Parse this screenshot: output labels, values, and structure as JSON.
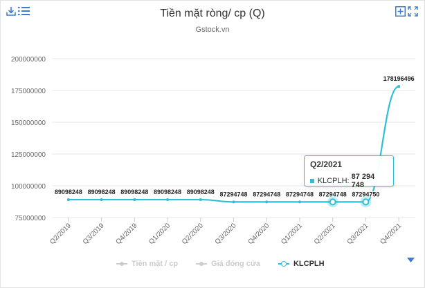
{
  "header": {
    "title": "Tiền mặt ròng/ cp (Q)",
    "subtitle": "Gstock.vn"
  },
  "icons": {
    "download": "download-icon",
    "menu": "menu-icon",
    "add": "add-icon",
    "fullscreen": "fullscreen-icon",
    "legend_nav": "triangle-down-icon"
  },
  "colors": {
    "series": "#2ebfd4",
    "inactive": "#cccccc",
    "grid": "#e6e6e6",
    "icon": "#3b7bd4"
  },
  "chart_data": {
    "type": "line",
    "categories": [
      "Q2/2019",
      "Q3/2019",
      "Q4/2019",
      "Q1/2020",
      "Q2/2020",
      "Q3/2020",
      "Q4/2020",
      "Q1/2021",
      "Q2/2021",
      "Q3/2021",
      "Q4/2021"
    ],
    "y_ticks": [
      "200000000",
      "175000000",
      "150000000",
      "125000000",
      "100000000",
      "75000000"
    ],
    "ylim": [
      75000000,
      200000000
    ],
    "grid": true,
    "series": [
      {
        "name": "KLCPLH",
        "values": [
          89098248,
          89098248,
          89098248,
          89098248,
          89098248,
          87294748,
          87294748,
          87294748,
          87294748,
          87294750,
          178196496
        ],
        "labels": [
          "89098248",
          "89098248",
          "89098248",
          "89098248",
          "89098248",
          "87294748",
          "87294748",
          "87294748",
          "87294748",
          "87294750",
          "178196496"
        ]
      }
    ],
    "legend": {
      "placement": "bottom",
      "items": [
        {
          "name": "Tiền mặt / cp",
          "active": false
        },
        {
          "name": "Giá đóng cửa",
          "active": false
        },
        {
          "name": "KLCPLH",
          "active": true
        }
      ]
    }
  },
  "tooltip": {
    "title": "Q2/2021",
    "series": "KLCPLH",
    "value": "87 294 748"
  }
}
